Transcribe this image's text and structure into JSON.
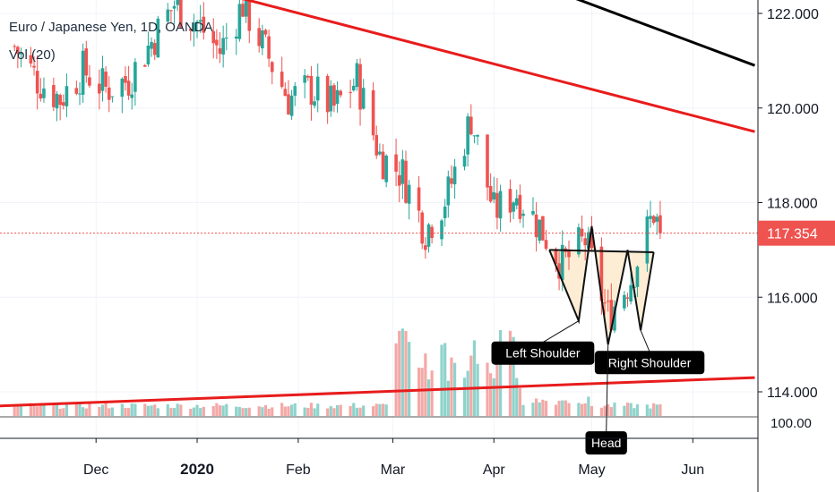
{
  "chart_data": {
    "type": "candlestick",
    "legend": {
      "title": "Euro / Japanese Yen, 1D, OANDA",
      "volume_label": "Vol (20)"
    },
    "x_axis": {
      "tick_labels": [
        "Dec",
        "2020",
        "Feb",
        "Mar",
        "Apr",
        "May",
        "Jun"
      ]
    },
    "y_axis": {
      "range": [
        113.1,
        122.5
      ],
      "tick_values": [
        114,
        116,
        118,
        120,
        122
      ],
      "tick_labels": [
        "114.000",
        "116.000",
        "118.000",
        "120.000",
        "122.000"
      ],
      "volume_tick_label": "100.00"
    },
    "last_price": 117.354,
    "last_price_label": "117.354",
    "colors": {
      "up": "#26a69a",
      "down": "#ef5350",
      "trendline": "#e81c1c",
      "channel": "#000000",
      "price_line": "#ef5350",
      "pattern_fill": "#fdebd0"
    },
    "candles_summary": {
      "start": "2019-11-06",
      "end": "2020-05-22",
      "close_path": [
        [
          "2019-11-06",
          121.3
        ],
        [
          "2019-11-13",
          120.6
        ],
        [
          "2019-11-20",
          120.2
        ],
        [
          "2019-11-27",
          120.8
        ],
        [
          "2019-12-04",
          120.4
        ],
        [
          "2019-12-11",
          120.6
        ],
        [
          "2019-12-18",
          121.4
        ],
        [
          "2019-12-25",
          122.2
        ],
        [
          "2020-01-01",
          121.8
        ],
        [
          "2020-01-08",
          121.2
        ],
        [
          "2020-01-15",
          122.2
        ],
        [
          "2020-01-22",
          121.2
        ],
        [
          "2020-01-29",
          120.2
        ],
        [
          "2020-02-05",
          120.4
        ],
        [
          "2020-02-12",
          120.0
        ],
        [
          "2020-02-19",
          120.6
        ],
        [
          "2020-02-26",
          119.0
        ],
        [
          "2020-03-04",
          118.6
        ],
        [
          "2020-03-11",
          117.4
        ],
        [
          "2020-03-18",
          118.2
        ],
        [
          "2020-03-25",
          119.8
        ],
        [
          "2020-04-01",
          117.8
        ],
        [
          "2020-04-08",
          118.2
        ],
        [
          "2020-04-15",
          117.5
        ],
        [
          "2020-04-22",
          116.7
        ],
        [
          "2020-04-29",
          117.2
        ],
        [
          "2020-05-06",
          115.6
        ],
        [
          "2020-05-13",
          116.4
        ],
        [
          "2020-05-20",
          117.8
        ],
        [
          "2020-05-22",
          117.354
        ]
      ]
    },
    "drawings": {
      "upper_trendline": [
        [
          "2020-01-10",
          122.4
        ],
        [
          "2020-06-20",
          119.5
        ]
      ],
      "lower_trendline": [
        [
          "2019-11-01",
          113.7
        ],
        [
          "2020-06-20",
          114.3
        ]
      ],
      "channel_line": [
        [
          "2020-04-15",
          122.6
        ],
        [
          "2020-06-20",
          120.9
        ]
      ],
      "neckline": [
        [
          "2020-04-18",
          117.0
        ],
        [
          "2020-05-20",
          116.95
        ]
      ],
      "pattern_points": [
        [
          "2020-04-18",
          117.0
        ],
        [
          "2020-04-27",
          115.5
        ],
        [
          "2020-05-01",
          117.5
        ],
        [
          "2020-05-06",
          115.0
        ],
        [
          "2020-05-12",
          117.0
        ],
        [
          "2020-05-16",
          115.3
        ],
        [
          "2020-05-20",
          116.95
        ]
      ]
    },
    "annotations": [
      {
        "text": "Left Shoulder",
        "date": "2020-04-27",
        "price": 115.5
      },
      {
        "text": "Right Shoulder",
        "date": "2020-05-16",
        "price": 115.3
      },
      {
        "text": "Head",
        "date": "2020-05-06",
        "price": 115.0
      }
    ]
  }
}
